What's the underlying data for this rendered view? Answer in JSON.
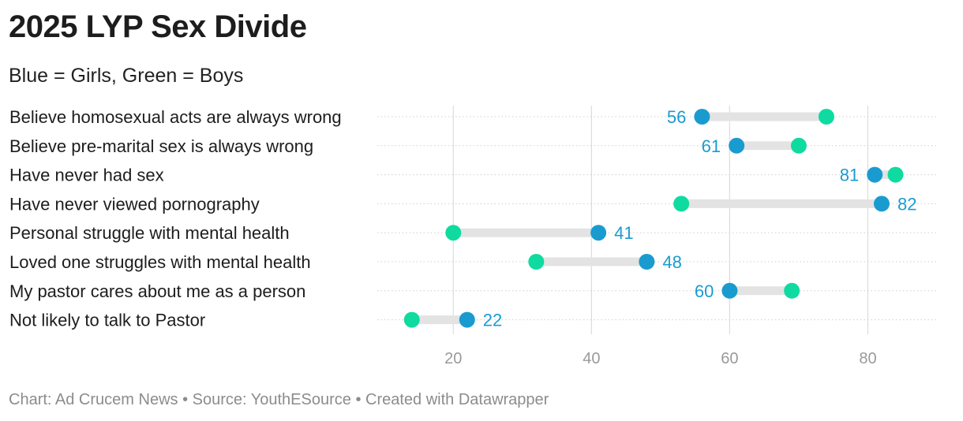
{
  "title": "2025 LYP Sex Divide",
  "subtitle": "Blue = Girls, Green = Boys",
  "footer": "Chart: Ad Crucem News • Source: YouthESource • Created with Datawrapper",
  "colors": {
    "girls": "#1a9bd0",
    "boys": "#0fdba0",
    "range": "#e3e3e3",
    "grid": "#dddddd"
  },
  "chart_data": {
    "type": "range-dot",
    "title": "2025 LYP Sex Divide",
    "subtitle": "Blue = Girls, Green = Boys",
    "xlim": [
      9,
      90
    ],
    "xticks": [
      20,
      40,
      60,
      80
    ],
    "series": [
      {
        "name": "Girls",
        "color": "#1a9bd0",
        "labeled": true
      },
      {
        "name": "Boys",
        "color": "#0fdba0",
        "labeled": false
      }
    ],
    "categories": [
      "Believe homosexual acts are always wrong",
      "Believe pre-marital sex is always wrong",
      "Have never had sex",
      "Have never viewed pornography",
      "Personal struggle with mental health",
      "Loved one struggles with mental health",
      "My pastor cares about me as a person",
      "Not likely to talk to Pastor"
    ],
    "girls": [
      56,
      61,
      81,
      82,
      41,
      48,
      60,
      22
    ],
    "boys": [
      74,
      70,
      84,
      53,
      20,
      32,
      69,
      14
    ]
  }
}
